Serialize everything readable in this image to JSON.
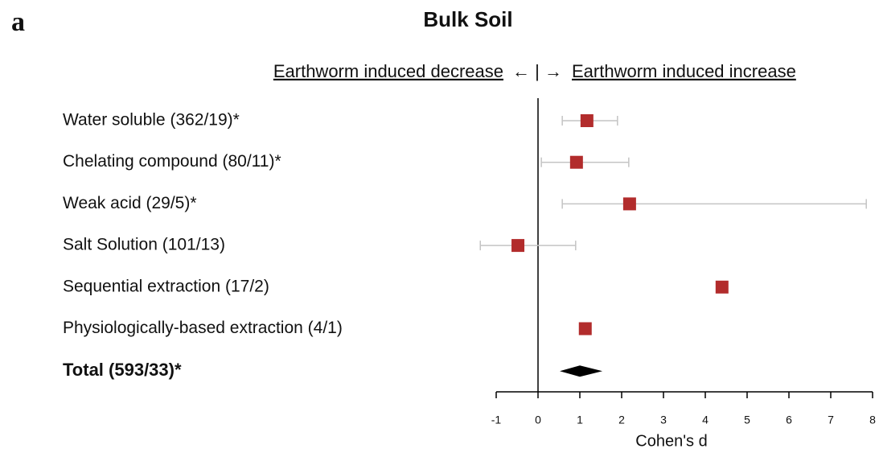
{
  "panel_label": "a",
  "chart_data": {
    "type": "forest",
    "title": "Bulk Soil",
    "header_left": "Earthworm induced decrease",
    "header_mid": "← | →",
    "header_right": "Earthworm induced increase",
    "categories": [
      "Water soluble (362/19)*",
      "Chelating compound (80/11)*",
      "Weak acid (29/5)*",
      "Salt Solution (101/13)",
      "Sequential extraction (17/2)",
      "Physiologically-based extraction (4/1)"
    ],
    "values": [
      1.17,
      0.92,
      2.19,
      -0.48,
      4.4,
      1.13
    ],
    "lower": [
      0.58,
      0.08,
      0.58,
      -1.38,
      null,
      null
    ],
    "upper": [
      1.9,
      2.17,
      7.85,
      0.9,
      null,
      null
    ],
    "total": {
      "label": "Total (593/33)*",
      "value": 1.0,
      "lower": 0.52,
      "upper": 1.54
    },
    "color": "#b22c2c",
    "ci_color": "#c4c4c4",
    "total_color": "#000000",
    "zero_line": 0,
    "xlabel": "Cohen's d",
    "xlim": [
      -1,
      8
    ],
    "xticks": [
      -1,
      0,
      1,
      2,
      3,
      4,
      5,
      6,
      7,
      8
    ]
  }
}
